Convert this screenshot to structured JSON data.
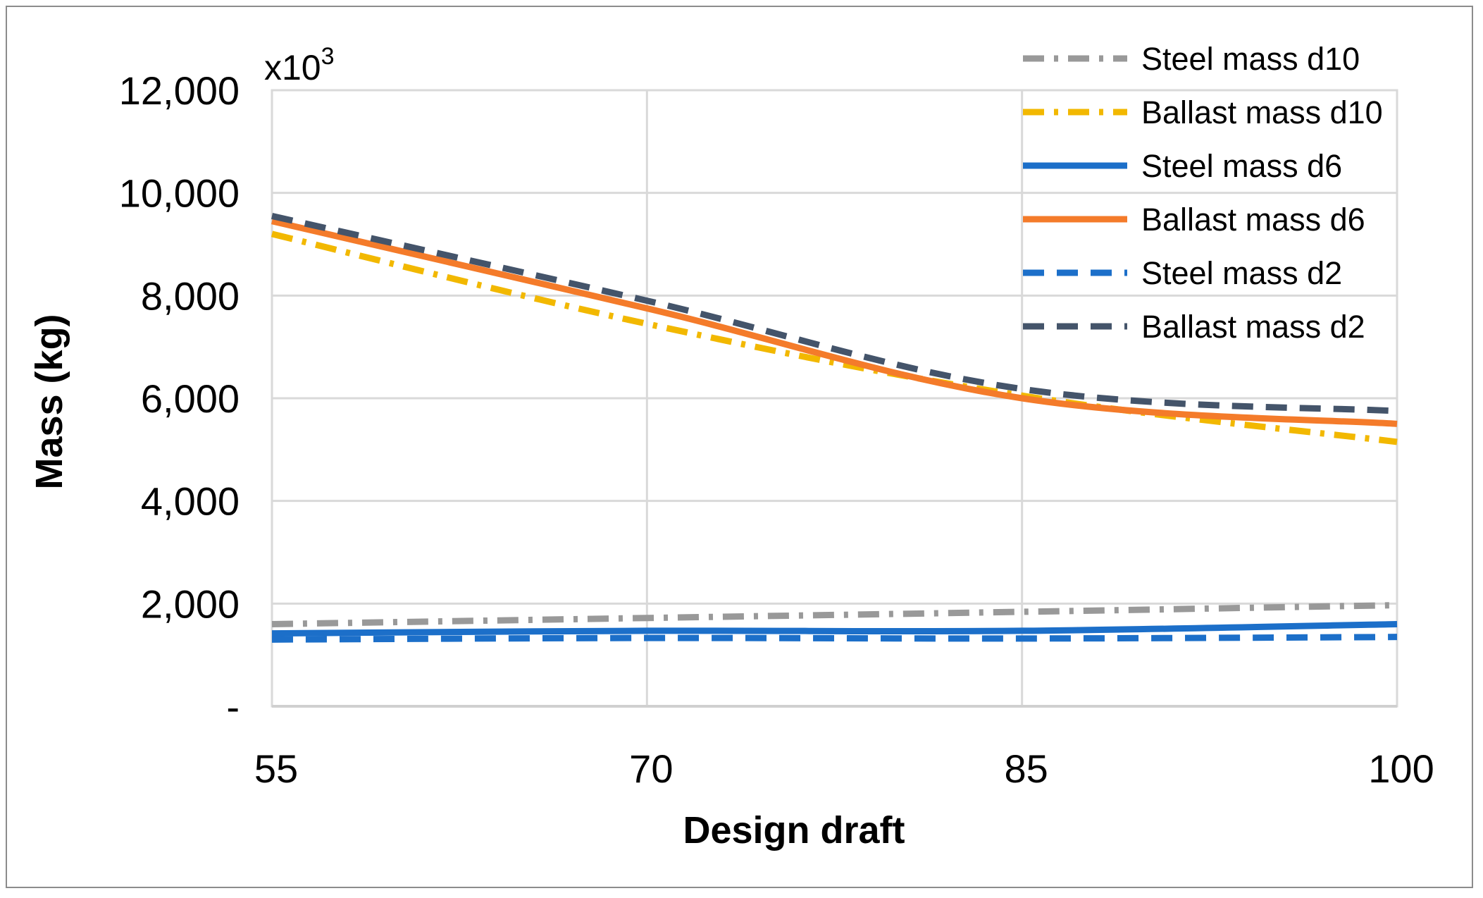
{
  "chart_data": {
    "type": "line",
    "title": "",
    "xlabel": "Design draft",
    "ylabel": "Mass (kg)",
    "y_multiplier_label": "x10",
    "y_multiplier_exponent": "3",
    "x": [
      55,
      70,
      85,
      100
    ],
    "x_tick_labels": [
      "55",
      "70",
      "85",
      "100"
    ],
    "xlim": [
      55,
      100
    ],
    "ylim": [
      0,
      12000
    ],
    "y_ticks": [
      0,
      2000,
      4000,
      6000,
      8000,
      10000,
      12000
    ],
    "y_tick_labels": [
      "-",
      "2,000",
      "4,000",
      "6,000",
      "8,000",
      "10,000",
      "12,000"
    ],
    "grid": true,
    "legend_position": "top-right",
    "series": [
      {
        "name": "Steel mass d10",
        "color": "#999999",
        "dash": "dash-dot",
        "x": [
          55,
          70,
          85,
          100
        ],
        "values": [
          1600,
          1720,
          1840,
          1970
        ]
      },
      {
        "name": "Ballast mass d10",
        "color": "#F2B800",
        "dash": "dash-dot",
        "x": [
          55,
          70,
          85,
          100
        ],
        "values": [
          9200,
          7450,
          6050,
          5150
        ]
      },
      {
        "name": "Steel mass d6",
        "color": "#1C6FC9",
        "dash": "solid",
        "x": [
          55,
          70,
          85,
          100
        ],
        "values": [
          1420,
          1470,
          1470,
          1600
        ]
      },
      {
        "name": "Ballast mass d6",
        "color": "#F47B2A",
        "dash": "solid",
        "x": [
          55,
          70,
          85,
          100
        ],
        "values": [
          9450,
          7750,
          6000,
          5500
        ]
      },
      {
        "name": "Steel mass d2",
        "color": "#1C6FC9",
        "dash": "dash",
        "x": [
          55,
          70,
          85,
          100
        ],
        "values": [
          1300,
          1330,
          1320,
          1350
        ]
      },
      {
        "name": "Ballast mass d2",
        "color": "#44546A",
        "dash": "dash",
        "x": [
          55,
          70,
          85,
          100
        ],
        "values": [
          9550,
          7900,
          6180,
          5750
        ]
      }
    ]
  }
}
